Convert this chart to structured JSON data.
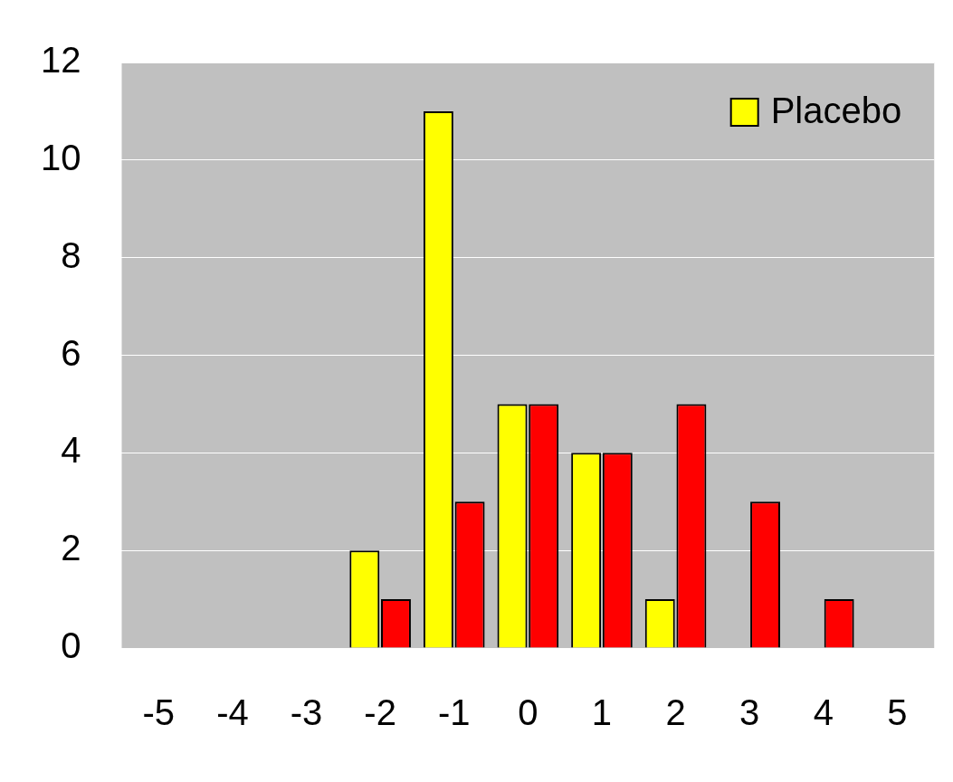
{
  "chart_data": {
    "type": "bar",
    "categories": [
      "-5",
      "-4",
      "-3",
      "-2",
      "-1",
      "0",
      "1",
      "2",
      "3",
      "4",
      "5"
    ],
    "series": [
      {
        "name": "Placebo",
        "color": "#ffff00",
        "values": [
          0,
          0,
          0,
          2,
          11,
          5,
          4,
          1,
          0,
          0,
          0
        ]
      },
      {
        "color": "#ff0000",
        "values": [
          0,
          0,
          0,
          1,
          3,
          5,
          4,
          5,
          3,
          1,
          0
        ]
      }
    ],
    "ylim": [
      0,
      12
    ],
    "yticks": [
      0,
      2,
      4,
      6,
      8,
      10,
      12
    ],
    "grid": "y",
    "legend": "top right"
  }
}
